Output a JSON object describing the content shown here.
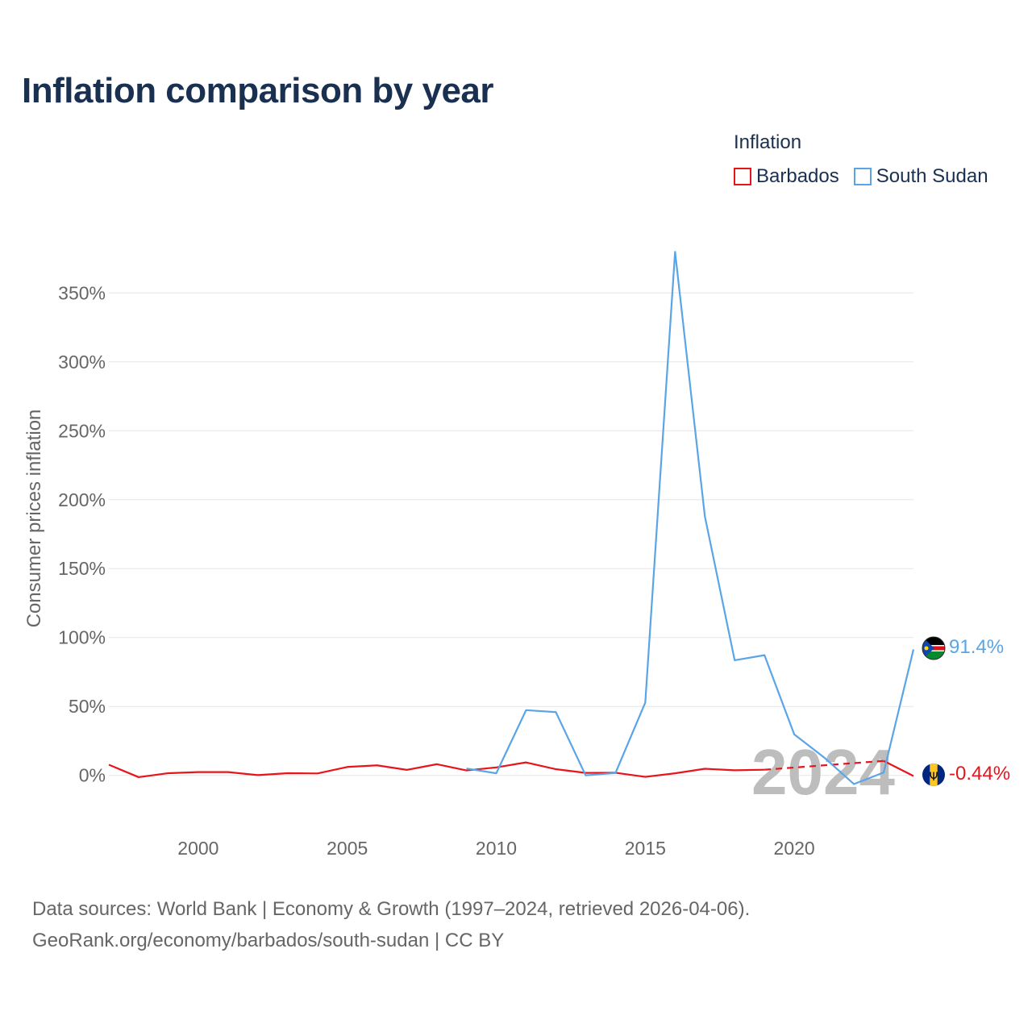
{
  "title": "Inflation comparison by year",
  "legend": {
    "title": "Inflation",
    "items": [
      {
        "label": "Barbados",
        "color": "#e8141b"
      },
      {
        "label": "South Sudan",
        "color": "#5aa5e6"
      }
    ]
  },
  "source": {
    "line1": "Data sources: World Bank | Economy & Growth (1997–2024, retrieved 2026-04-06).",
    "line2": "GeoRank.org/economy/barbados/south-sudan | CC BY"
  },
  "chart_data": {
    "type": "line",
    "title": "Inflation comparison by year",
    "xlabel": "",
    "ylabel": "Consumer prices inflation",
    "xlim": [
      1997,
      2024
    ],
    "ylim": [
      -30,
      380
    ],
    "x_ticks": [
      2000,
      2005,
      2010,
      2015,
      2020
    ],
    "y_ticks": [
      0,
      50,
      100,
      150,
      200,
      250,
      300,
      350
    ],
    "y_tick_labels": [
      "0%",
      "50%",
      "100%",
      "150%",
      "200%",
      "250%",
      "300%",
      "350%"
    ],
    "year_watermark": "2024",
    "series": [
      {
        "name": "Barbados",
        "color": "#e8141b",
        "end_label": "-0.44%",
        "flag": "barbados-flag",
        "x": [
          1997,
          1998,
          1999,
          2000,
          2001,
          2002,
          2003,
          2004,
          2005,
          2006,
          2007,
          2008,
          2009,
          2010,
          2011,
          2012,
          2013,
          2014,
          2015,
          2016,
          2017,
          2018,
          2019,
          2020,
          2021,
          2022,
          2023,
          2024
        ],
        "values": [
          7.7,
          -1.3,
          1.6,
          2.4,
          2.4,
          0.2,
          1.6,
          1.4,
          6.1,
          7.3,
          4.0,
          8.1,
          3.6,
          5.8,
          9.4,
          4.5,
          1.8,
          1.9,
          -1.1,
          1.5,
          4.8,
          3.7,
          4.1,
          null,
          null,
          null,
          10.5,
          -0.44
        ],
        "dashed_segment": [
          2019,
          2023
        ]
      },
      {
        "name": "South Sudan",
        "color": "#5aa5e6",
        "end_label": "91.4%",
        "flag": "south-sudan-flag",
        "x": [
          2009,
          2010,
          2011,
          2012,
          2013,
          2014,
          2015,
          2016,
          2017,
          2018,
          2019,
          2020,
          2021,
          2022,
          2023,
          2024
        ],
        "values": [
          5.0,
          1.5,
          47.3,
          45.9,
          0.0,
          1.7,
          52.8,
          379.8,
          187.9,
          83.5,
          87.2,
          29.7,
          13.0,
          -6.3,
          2.1,
          91.4
        ]
      }
    ],
    "grid": true,
    "legend_position": "top-right"
  }
}
